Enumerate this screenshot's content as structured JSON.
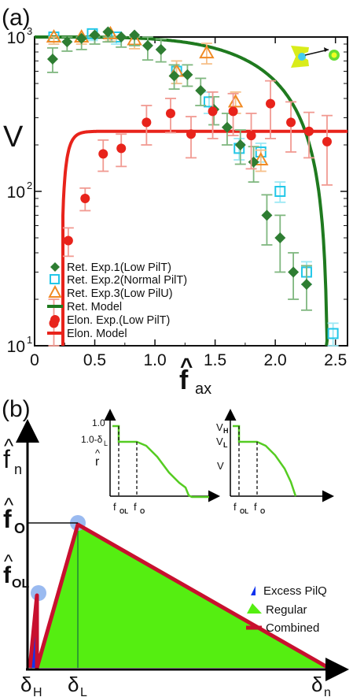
{
  "panel_a": {
    "label": "(a)",
    "ylabel": "V",
    "xlabel_main": "f",
    "xlabel_hat": "^",
    "xlabel_sub": "ax",
    "x_ticks": [
      "0",
      "0.5",
      "1.0",
      "1.5",
      "2.0",
      "2.5"
    ],
    "y_ticks": [
      {
        "base": "10",
        "exp": "1"
      },
      {
        "base": "10",
        "exp": "2"
      },
      {
        "base": "10",
        "exp": "3"
      }
    ],
    "legend": [
      {
        "label": "Ret. Exp.1(Low PilT)"
      },
      {
        "label": "Ret. Exp.2(Normal PilT)"
      },
      {
        "label": "Ret. Exp.3(Low PilU)"
      },
      {
        "label": "Ret. Model"
      },
      {
        "label": "Elon. Exp.(Low PilT)"
      },
      {
        "label": "Elon. Model"
      }
    ],
    "colors": {
      "exp1": "#2e7d32",
      "exp1_err": "#7fb77f",
      "exp2": "#22c7e8",
      "exp2_err": "#9ce8f4",
      "exp3": "#f08a24",
      "exp3_err": "#f6c08a",
      "ret_model": "#1f7a1f",
      "elon": "#e8231b",
      "elon_err": "#f19a92",
      "elon_model": "#e8231b"
    }
  },
  "panel_b": {
    "label": "(b)",
    "y_hat": "^",
    "y_main": "f",
    "y_sub": "n",
    "y_f0_main": "f",
    "y_f0_sub": "O",
    "y_f0L_main": "f",
    "y_f0L_sub": "OL",
    "x_dH": "δ",
    "x_dH_sub": "H",
    "x_dL": "δ",
    "x_dL_sub": "L",
    "x_dn": "δ",
    "x_dn_sub": "n",
    "legend": [
      {
        "label": "Excess PilQ",
        "icon": "blue-triangle-icon"
      },
      {
        "label": "Regular",
        "icon": "green-triangle-icon"
      },
      {
        "label": "Combined",
        "icon": "red-line-icon"
      }
    ],
    "colors": {
      "regular": "#55ee11",
      "excess": "#1133ee",
      "combined": "#c8102e",
      "highlight": "#8fb2ee",
      "inset_curve": "#55cc22"
    },
    "inset1": {
      "y_1": "1.0",
      "y_1d": "1.0-δ",
      "y_1d_sub": "L",
      "y_r": "r",
      "y_r_hat": "^",
      "x_f0L": "f",
      "x_f0L_sub": "OL",
      "x_f0": "f",
      "x_f0_sub": "O"
    },
    "inset2": {
      "y_VH": "V",
      "y_VH_sub": "H",
      "y_VL": "V",
      "y_VL_sub": "L",
      "y_V": "V",
      "x_f0L": "f",
      "x_f0L_sub": "OL",
      "x_f0": "f",
      "x_f0_sub": "O"
    }
  },
  "chart_data": [
    {
      "type": "scatter",
      "panel": "(a)",
      "xlabel": "f_ax",
      "ylabel": "V",
      "xlim": [
        0,
        2.6
      ],
      "ylim": [
        10,
        1000
      ],
      "y_scale": "log",
      "legend_position": "bottom-left",
      "series": [
        {
          "name": "Ret. Exp.1(Low PilT)",
          "marker": "diamond",
          "points": [
            [
              0.15,
              720,
              130
            ],
            [
              0.27,
              930,
              120
            ],
            [
              0.39,
              980,
              150
            ],
            [
              0.5,
              1030,
              130
            ],
            [
              0.61,
              1080,
              150
            ],
            [
              0.72,
              1000,
              140
            ],
            [
              0.83,
              1030,
              150
            ],
            [
              0.94,
              880,
              170
            ],
            [
              1.05,
              830,
              140
            ],
            [
              1.16,
              560,
              100
            ],
            [
              1.27,
              570,
              90
            ],
            [
              1.38,
              450,
              90
            ],
            [
              1.49,
              340,
              70
            ],
            [
              1.6,
              260,
              60
            ],
            [
              1.71,
              200,
              50
            ],
            [
              1.82,
              155,
              40
            ],
            [
              1.93,
              70,
              25
            ],
            [
              2.04,
              50,
              20
            ],
            [
              2.15,
              30,
              10
            ],
            [
              2.26,
              25,
              8
            ]
          ]
        },
        {
          "name": "Ret. Exp.2(Normal PilT)",
          "marker": "open-square",
          "points": [
            [
              0.16,
              1000,
              100
            ],
            [
              0.48,
              1050,
              100
            ],
            [
              0.68,
              1000,
              100
            ],
            [
              1.18,
              600,
              100
            ],
            [
              1.45,
              380,
              60
            ],
            [
              1.7,
              190,
              30
            ],
            [
              1.88,
              180,
              25
            ],
            [
              2.04,
              100,
              15
            ],
            [
              2.26,
              30,
              5
            ],
            [
              2.48,
              12,
              2
            ]
          ]
        },
        {
          "name": "Ret. Exp.3(Low PilU)",
          "marker": "open-triangle",
          "points": [
            [
              0.16,
              1000,
              100
            ],
            [
              0.39,
              1000,
              100
            ],
            [
              0.63,
              1050,
              110
            ],
            [
              0.83,
              960,
              120
            ],
            [
              1.18,
              600,
              100
            ],
            [
              1.43,
              790,
              120
            ],
            [
              1.67,
              380,
              60
            ],
            [
              1.88,
              160,
              25
            ]
          ]
        },
        {
          "name": "Ret. Model",
          "marker": "line",
          "function": "V = 1000*(1-(x/2.44)^4)^1.1"
        },
        {
          "name": "Elon. Exp.(Low PilT)",
          "marker": "circle",
          "points": [
            [
              0.16,
              14,
              6
            ],
            [
              0.28,
              48,
              10
            ],
            [
              0.42,
              90,
              15
            ],
            [
              0.57,
              175,
              40
            ],
            [
              0.72,
              190,
              45
            ],
            [
              0.93,
              280,
              80
            ],
            [
              1.13,
              320,
              80
            ],
            [
              1.3,
              235,
              70
            ],
            [
              1.48,
              330,
              110
            ],
            [
              1.65,
              330,
              100
            ],
            [
              1.8,
              230,
              90
            ],
            [
              1.96,
              370,
              150
            ],
            [
              2.13,
              280,
              100
            ],
            [
              2.28,
              245,
              80
            ],
            [
              2.43,
              210,
              100
            ]
          ]
        },
        {
          "name": "Elon. Model",
          "marker": "line",
          "function": "V = 245*(1-exp(-(x-0.22)/0.045))"
        }
      ]
    },
    {
      "type": "area",
      "panel": "(b)",
      "xlabel": "δ_n",
      "ylabel": "f_n",
      "regions": [
        {
          "name": "Regular",
          "vertices": [
            [
              "δ_H",
              0
            ],
            [
              "δ_L",
              "f_O"
            ],
            [
              "δ_n",
              0
            ]
          ]
        },
        {
          "name": "Excess PilQ",
          "vertices": [
            [
              0,
              0
            ],
            [
              "δ_H",
              "f_OL"
            ],
            [
              "δ_H",
              0
            ]
          ]
        }
      ],
      "combined_boundary": [
        [
          0,
          0
        ],
        [
          "δ_H",
          "f_OL"
        ],
        [
          "δ_H",
          0
        ],
        [
          "δ_L",
          "f_O"
        ],
        [
          "δ_n",
          0
        ]
      ]
    }
  ]
}
